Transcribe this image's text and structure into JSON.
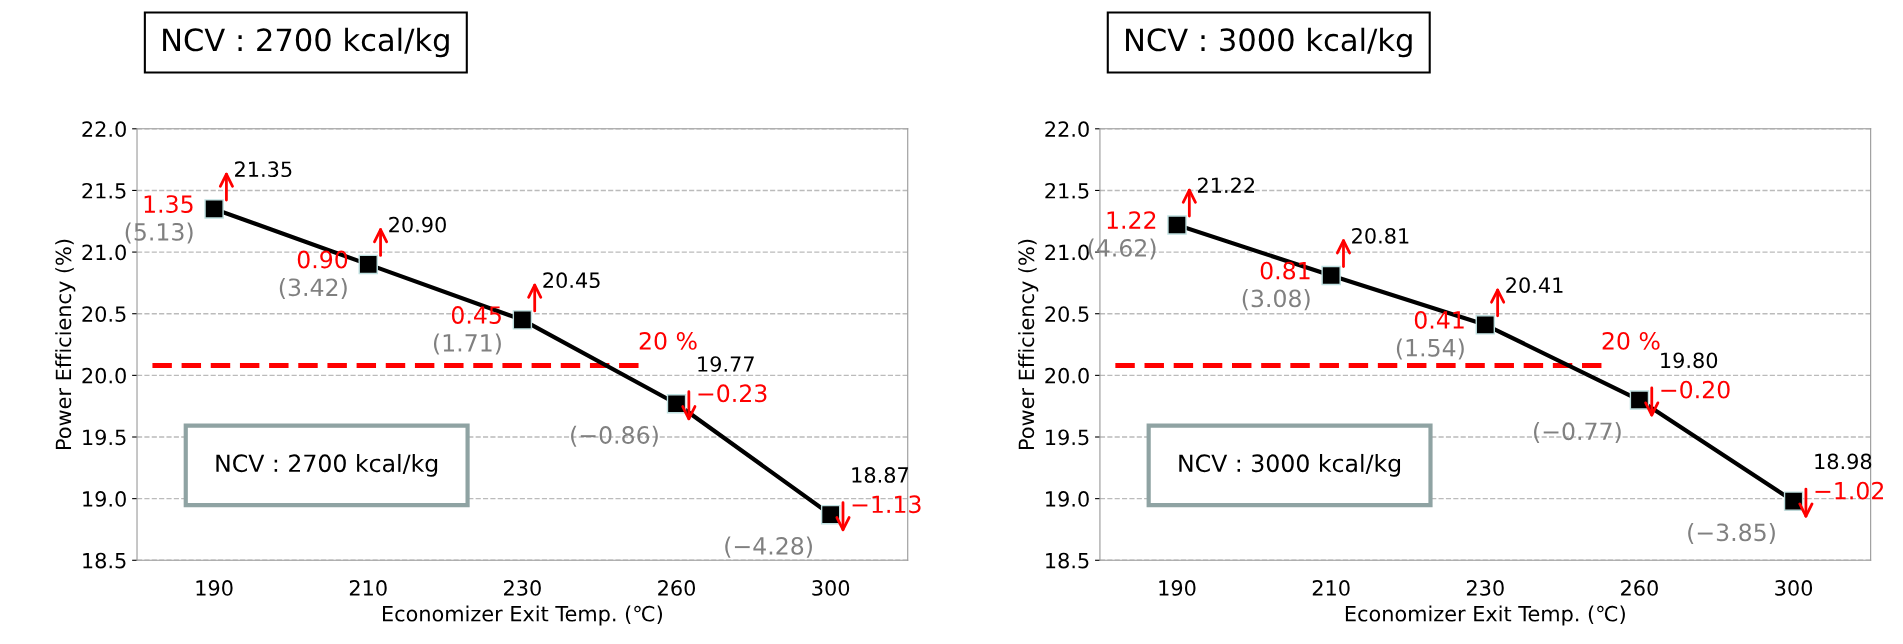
{
  "chart_data": [
    {
      "type": "line",
      "title": "NCV : 2700 kcal/kg",
      "xlabel": "Economizer Exit Temp. (℃)",
      "ylabel": "Power Efficiency (%)",
      "categories": [
        "190",
        "210",
        "230",
        "260",
        "300"
      ],
      "series": [
        {
          "color": "#000000",
          "values": [
            21.35,
            20.9,
            20.45,
            19.77,
            18.87
          ],
          "value_labels": [
            "21.35",
            "20.90",
            "20.45",
            "19.77",
            "18.87"
          ]
        }
      ],
      "ylim": [
        18.5,
        22.0
      ],
      "yticks": [
        {
          "value": 18.5,
          "label": "18.5"
        },
        {
          "value": 19.0,
          "label": "19.0"
        },
        {
          "value": 19.5,
          "label": "19.5"
        },
        {
          "value": 20.0,
          "label": "20.0"
        },
        {
          "value": 20.5,
          "label": "20.5"
        },
        {
          "value": 21.0,
          "label": "21.0"
        },
        {
          "value": 21.5,
          "label": "21.5"
        },
        {
          "value": 22.0,
          "label": "22.0"
        }
      ],
      "grid": "y",
      "marker": "square",
      "line_style": "solid",
      "legend": false,
      "ref_lines": [
        {
          "axis": "y",
          "value": 20.08,
          "label": "20 %",
          "color": "#ff0000",
          "line_style": "dashed"
        }
      ],
      "annotations": [
        "NCV : 2700 kcal/kg",
        {
          "text": "1.35",
          "x": "190",
          "y": 21.35
        },
        {
          "text": "(5.13)",
          "x": "190",
          "y": 21.35
        },
        {
          "text": "0.90",
          "x": "210",
          "y": 20.9
        },
        {
          "text": "(3.42)",
          "x": "210",
          "y": 20.9
        },
        {
          "text": "0.45",
          "x": "230",
          "y": 20.45
        },
        {
          "text": "(1.71)",
          "x": "230",
          "y": 20.45
        },
        {
          "text": "−0.23",
          "x": "260",
          "y": 19.77
        },
        {
          "text": "(−0.86)",
          "x": "260",
          "y": 19.77
        },
        {
          "text": "−1.13",
          "x": "300",
          "y": 18.87
        },
        {
          "text": "(−4.28)",
          "x": "300",
          "y": 18.87
        }
      ]
    },
    {
      "type": "line",
      "title": "NCV : 3000 kcal/kg",
      "xlabel": "Economizer Exit Temp. (℃)",
      "ylabel": "Power Efficiency (%)",
      "categories": [
        "190",
        "210",
        "230",
        "260",
        "300"
      ],
      "series": [
        {
          "color": "#000000",
          "values": [
            21.22,
            20.81,
            20.41,
            19.8,
            18.98
          ],
          "value_labels": [
            "21.22",
            "20.81",
            "20.41",
            "19.80",
            "18.98"
          ]
        }
      ],
      "ylim": [
        18.5,
        22.0
      ],
      "yticks": [
        {
          "value": 18.5,
          "label": "18.5"
        },
        {
          "value": 19.0,
          "label": "19.0"
        },
        {
          "value": 19.5,
          "label": "19.5"
        },
        {
          "value": 20.0,
          "label": "20.0"
        },
        {
          "value": 20.5,
          "label": "20.5"
        },
        {
          "value": 21.0,
          "label": "21.0"
        },
        {
          "value": 21.5,
          "label": "21.5"
        },
        {
          "value": 22.0,
          "label": "22.0"
        }
      ],
      "grid": "y",
      "marker": "square",
      "line_style": "solid",
      "legend": false,
      "ref_lines": [
        {
          "axis": "y",
          "value": 20.08,
          "label": "20 %",
          "color": "#ff0000",
          "line_style": "dashed"
        }
      ],
      "annotations": [
        "NCV : 3000 kcal/kg",
        {
          "text": "1.22",
          "x": "190",
          "y": 21.22
        },
        {
          "text": "(4.62)",
          "x": "190",
          "y": 21.22
        },
        {
          "text": "0.81",
          "x": "210",
          "y": 20.81
        },
        {
          "text": "(3.08)",
          "x": "210",
          "y": 20.81
        },
        {
          "text": "0.41",
          "x": "230",
          "y": 20.41
        },
        {
          "text": "(1.54)",
          "x": "230",
          "y": 20.41
        },
        {
          "text": "−0.20",
          "x": "260",
          "y": 19.8
        },
        {
          "text": "(−0.77)",
          "x": "260",
          "y": 19.8
        },
        {
          "text": "−1.02",
          "x": "300",
          "y": 18.98
        },
        {
          "text": "(−3.85)",
          "x": "300",
          "y": 18.98
        }
      ]
    }
  ]
}
